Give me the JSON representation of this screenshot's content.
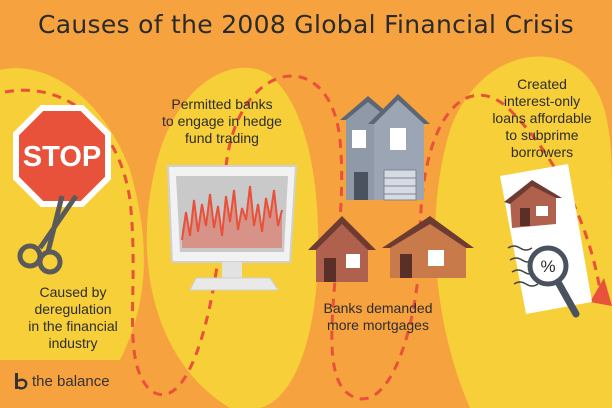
{
  "title": "Causes of the 2008 Global Financial Crisis",
  "causes": [
    {
      "lines": [
        "Caused by",
        "deregulation",
        "in the financial",
        "industry"
      ]
    },
    {
      "lines": [
        "Permitted banks",
        "to engage in hedge",
        "fund trading"
      ]
    },
    {
      "lines": [
        "Banks demanded",
        "more mortgages"
      ]
    },
    {
      "lines": [
        "Created",
        "interest-only",
        "loans affordable",
        "to subprime",
        "borrowers"
      ]
    }
  ],
  "stop_sign": {
    "text": "STOP"
  },
  "document": {
    "symbol": "%"
  },
  "brand": {
    "name": "the balance"
  },
  "colors": {
    "orange": "#f6a23f",
    "yellow": "#f7cf38",
    "red": "#e8513a",
    "dark": "#2a2a2a"
  }
}
